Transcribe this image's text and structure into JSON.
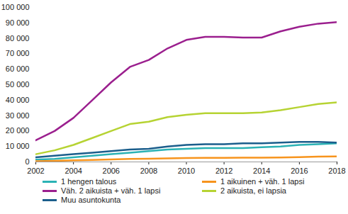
{
  "chart_data": {
    "type": "line",
    "x": [
      2002,
      2003,
      2004,
      2005,
      2006,
      2007,
      2008,
      2009,
      2010,
      2011,
      2012,
      2013,
      2014,
      2015,
      2016,
      2017,
      2018
    ],
    "series": [
      {
        "name": "1 hengen talous",
        "color": "#2bb2b5",
        "values": [
          1500,
          2000,
          3000,
          4000,
          5000,
          6000,
          7000,
          8000,
          8500,
          9000,
          9000,
          9000,
          9500,
          10000,
          11000,
          11500,
          12000
        ]
      },
      {
        "name": "1 aikuinen + väh. 1 lapsi",
        "color": "#f7941d",
        "values": [
          500,
          700,
          1000,
          1300,
          1600,
          1900,
          2100,
          2300,
          2500,
          2600,
          2600,
          2700,
          2800,
          2900,
          3100,
          3400,
          3500
        ]
      },
      {
        "name": "Väh. 2 aikuista + väh. 1 lapsi",
        "color": "#9b1f8e",
        "values": [
          14000,
          20000,
          28500,
          40000,
          51500,
          61500,
          66000,
          73500,
          79000,
          81000,
          81000,
          80500,
          80500,
          84500,
          87500,
          89500,
          90500
        ]
      },
      {
        "name": "2 aikuista, ei lapsia",
        "color": "#b6d333",
        "values": [
          5000,
          7500,
          11000,
          15500,
          20000,
          24500,
          26000,
          29000,
          30500,
          31500,
          31500,
          31500,
          32000,
          33500,
          35500,
          37500,
          38500
        ]
      },
      {
        "name": "Muu asuntokunta",
        "color": "#1b5e8c",
        "values": [
          3000,
          4000,
          5000,
          6000,
          7000,
          8000,
          8500,
          10000,
          11000,
          11500,
          11500,
          12000,
          12000,
          12500,
          13000,
          13000,
          12500
        ]
      }
    ],
    "xlim": [
      2002,
      2018
    ],
    "xticks": [
      2002,
      2004,
      2006,
      2008,
      2010,
      2012,
      2014,
      2016,
      2018
    ],
    "ylim": [
      0,
      100000
    ],
    "yticks": [
      0,
      {
        "value": 10000,
        "label": "10 000"
      },
      {
        "value": 20000,
        "label": "20 000"
      },
      {
        "value": 30000,
        "label": "30 000"
      },
      {
        "value": 40000,
        "label": "40 000"
      },
      {
        "value": 50000,
        "label": "50 000"
      },
      {
        "value": 60000,
        "label": "60 000"
      },
      {
        "value": 70000,
        "label": "70 000"
      },
      {
        "value": 80000,
        "label": "80 000"
      },
      {
        "value": 90000,
        "label": "90 000"
      },
      {
        "value": 100000,
        "label": "100 000"
      }
    ],
    "grid": false,
    "legend": "bottom"
  }
}
